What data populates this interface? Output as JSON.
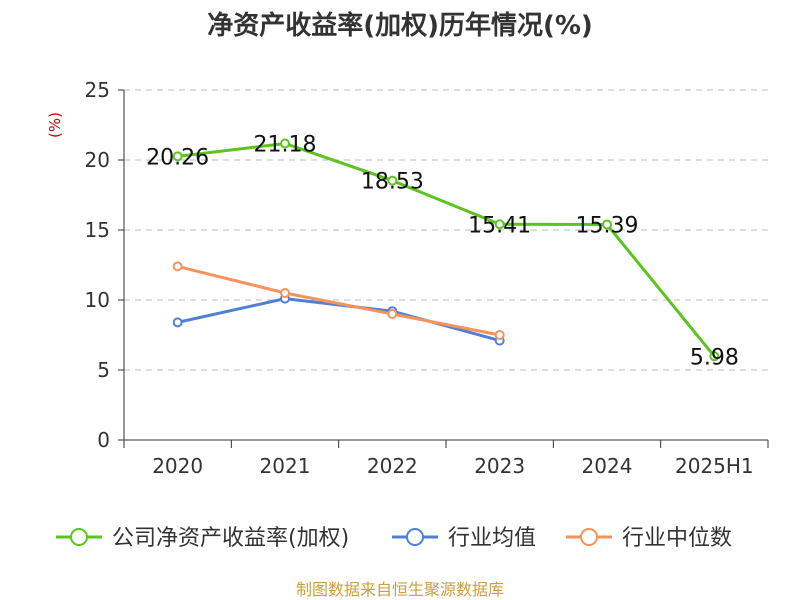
{
  "chart_data": {
    "type": "line",
    "title": "净资产收益率(加权)历年情况(%)",
    "ylabel": "(%)",
    "xlabel": "",
    "categories": [
      "2020",
      "2021",
      "2022",
      "2023",
      "2024",
      "2025H1"
    ],
    "ylim": [
      0,
      25
    ],
    "yticks": [
      0,
      5,
      10,
      15,
      20,
      25
    ],
    "grid": true,
    "legend_position": "bottom",
    "series": [
      {
        "name": "公司净资产收益率(加权)",
        "color": "#5cc320",
        "values": [
          20.26,
          21.18,
          18.53,
          15.41,
          15.39,
          5.98
        ],
        "labels": [
          "20.26",
          "21.18",
          "18.53",
          "15.41",
          "15.39",
          "5.98"
        ]
      },
      {
        "name": "行业均值",
        "color": "#4f7fd6",
        "values": [
          8.4,
          10.1,
          9.2,
          7.1,
          null,
          null
        ]
      },
      {
        "name": "行业中位数",
        "color": "#f4935c",
        "values": [
          12.4,
          10.5,
          9.0,
          7.5,
          null,
          null
        ]
      }
    ]
  },
  "source_text": "制图数据来自恒生聚源数据库"
}
